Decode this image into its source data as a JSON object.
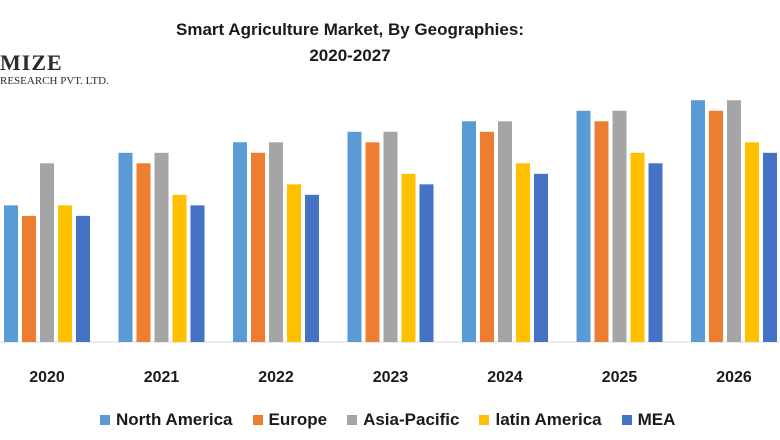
{
  "logo": {
    "main": "MIZE",
    "sub": "RESEARCH PVT. LTD."
  },
  "chart_data": {
    "type": "bar",
    "title_lines": [
      "Smart Agriculture Market, By Geographies:",
      "2020-2027"
    ],
    "categories": [
      "2020",
      "2021",
      "2022",
      "2023",
      "2024",
      "2025",
      "2026"
    ],
    "series": [
      {
        "name": "North America",
        "color": "#5b9bd5",
        "values": [
          13,
          18,
          19,
          20,
          21,
          22,
          23
        ]
      },
      {
        "name": "Europe",
        "color": "#ed7d31",
        "values": [
          12,
          17,
          18,
          19,
          20,
          21,
          22
        ]
      },
      {
        "name": "Asia-Pacific",
        "color": "#a5a5a5",
        "values": [
          17,
          18,
          19,
          20,
          21,
          22,
          23
        ]
      },
      {
        "name": "latin America",
        "color": "#ffc000",
        "values": [
          13,
          14,
          15,
          16,
          17,
          18,
          19
        ]
      },
      {
        "name": "MEA",
        "color": "#4472c4",
        "values": [
          12,
          13,
          14,
          15,
          16,
          17,
          18
        ]
      }
    ],
    "xlabel": "",
    "ylabel": "",
    "ylim": [
      0,
      23.5
    ],
    "grid": false,
    "legend_position": "bottom"
  }
}
